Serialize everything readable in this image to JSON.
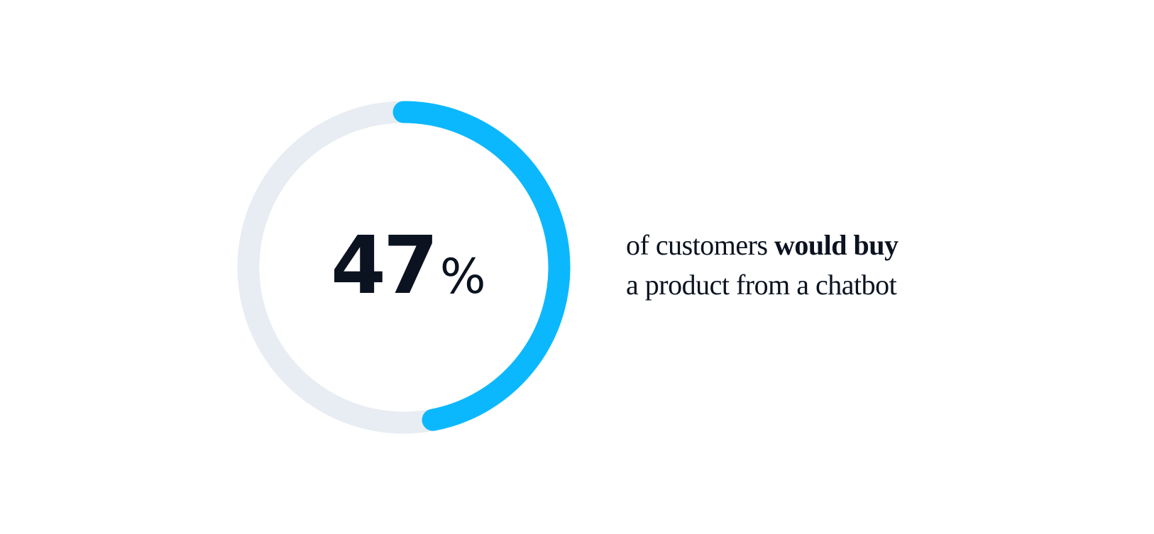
{
  "chart_data": {
    "type": "progress-ring",
    "values": [
      47
    ],
    "value_unit": "%",
    "range": [
      0,
      100
    ],
    "color": "#0bb8fd",
    "track_color": "#e8edf3",
    "caption": {
      "lead": "of customers",
      "emphasis": "would buy",
      "second_line": "a product from a chatbot"
    }
  }
}
